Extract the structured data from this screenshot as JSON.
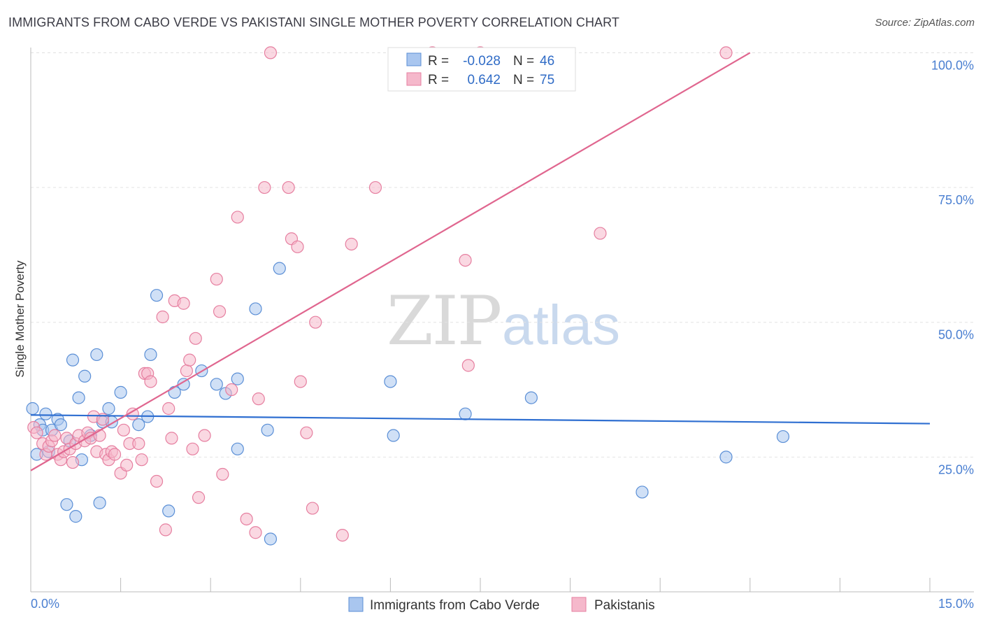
{
  "header": {
    "title": "IMMIGRANTS FROM CABO VERDE VS PAKISTANI SINGLE MOTHER POVERTY CORRELATION CHART",
    "source": "Source: ZipAtlas.com"
  },
  "watermark": {
    "zip": "ZIP",
    "atlas": "atlas"
  },
  "colors": {
    "blue_fill": "#a9c6ef",
    "blue_stroke": "#5b8fd6",
    "blue_line": "#2f6fd1",
    "pink_fill": "#f5b8cb",
    "pink_stroke": "#e67fa0",
    "pink_line": "#e0668f",
    "axis_label": "#4a7fd1"
  },
  "legend": {
    "rows": [
      {
        "r_label": "R =",
        "r_value": "-0.028",
        "n_label": "N =",
        "n_value": "46",
        "color": "#a9c6ef"
      },
      {
        "r_label": "R =",
        "r_value": "0.642",
        "n_label": "N =",
        "n_value": "75",
        "color": "#f5b8cb"
      }
    ]
  },
  "bottom_legend": {
    "items": [
      {
        "label": "Immigrants from Cabo Verde",
        "color": "#a9c6ef"
      },
      {
        "label": "Pakistanis",
        "color": "#f5b8cb"
      }
    ]
  },
  "chart_data": {
    "type": "scatter",
    "title": "IMMIGRANTS FROM CABO VERDE VS PAKISTANI SINGLE MOTHER POVERTY CORRELATION CHART",
    "xlabel": "",
    "ylabel": "Single Mother Poverty",
    "xlim": [
      0,
      15
    ],
    "ylim": [
      0,
      102
    ],
    "x_tick_labels": [
      "0.0%",
      "15.0%"
    ],
    "y_ticks": [
      25,
      50,
      75,
      100
    ],
    "y_tick_labels": [
      "25.0%",
      "50.0%",
      "75.0%",
      "100.0%"
    ],
    "grid": true,
    "series": [
      {
        "name": "Immigrants from Cabo Verde",
        "r": -0.028,
        "n": 46,
        "trend": {
          "x": [
            0,
            15
          ],
          "y": [
            32.8,
            31.2
          ]
        },
        "points": [
          [
            0.03,
            34.0
          ],
          [
            0.1,
            25.5
          ],
          [
            0.15,
            31.0
          ],
          [
            0.2,
            30.0
          ],
          [
            0.25,
            33.0
          ],
          [
            0.3,
            26.0
          ],
          [
            0.35,
            30.0
          ],
          [
            0.45,
            32.0
          ],
          [
            0.5,
            31.0
          ],
          [
            0.6,
            16.2
          ],
          [
            0.65,
            28.0
          ],
          [
            0.7,
            43.0
          ],
          [
            0.75,
            14.0
          ],
          [
            0.8,
            36.0
          ],
          [
            0.85,
            24.5
          ],
          [
            0.9,
            40.0
          ],
          [
            1.0,
            29.0
          ],
          [
            1.1,
            44.0
          ],
          [
            1.15,
            16.5
          ],
          [
            1.2,
            31.5
          ],
          [
            1.3,
            34.0
          ],
          [
            1.35,
            31.5
          ],
          [
            1.5,
            37.0
          ],
          [
            1.8,
            31.0
          ],
          [
            1.95,
            32.5
          ],
          [
            2.0,
            44.0
          ],
          [
            2.1,
            55.0
          ],
          [
            2.3,
            15.0
          ],
          [
            2.4,
            37.0
          ],
          [
            2.55,
            38.5
          ],
          [
            2.85,
            41.0
          ],
          [
            3.1,
            38.5
          ],
          [
            3.25,
            36.8
          ],
          [
            3.45,
            39.5
          ],
          [
            3.45,
            26.5
          ],
          [
            3.75,
            52.5
          ],
          [
            3.95,
            30.0
          ],
          [
            4.0,
            9.8
          ],
          [
            4.15,
            60.0
          ],
          [
            6.0,
            39.0
          ],
          [
            6.05,
            29.0
          ],
          [
            7.25,
            33.0
          ],
          [
            8.35,
            36.0
          ],
          [
            10.2,
            18.5
          ],
          [
            11.6,
            25.0
          ],
          [
            12.55,
            28.8
          ]
        ]
      },
      {
        "name": "Pakistanis",
        "r": 0.642,
        "n": 75,
        "trend": {
          "x": [
            0,
            12.0
          ],
          "y": [
            22.5,
            100.0
          ]
        },
        "points": [
          [
            0.05,
            30.5
          ],
          [
            0.1,
            29.5
          ],
          [
            0.2,
            27.5
          ],
          [
            0.25,
            25.5
          ],
          [
            0.3,
            27.0
          ],
          [
            0.35,
            28.0
          ],
          [
            0.4,
            29.0
          ],
          [
            0.45,
            25.5
          ],
          [
            0.5,
            24.5
          ],
          [
            0.55,
            26.0
          ],
          [
            0.6,
            28.5
          ],
          [
            0.65,
            26.5
          ],
          [
            0.7,
            24.0
          ],
          [
            0.75,
            27.5
          ],
          [
            0.8,
            29.0
          ],
          [
            0.9,
            28.0
          ],
          [
            0.95,
            29.5
          ],
          [
            1.0,
            28.5
          ],
          [
            1.05,
            32.5
          ],
          [
            1.1,
            26.0
          ],
          [
            1.15,
            29.0
          ],
          [
            1.2,
            32.0
          ],
          [
            1.25,
            25.5
          ],
          [
            1.3,
            24.5
          ],
          [
            1.35,
            26.0
          ],
          [
            1.4,
            25.5
          ],
          [
            1.5,
            22.0
          ],
          [
            1.55,
            30.0
          ],
          [
            1.6,
            23.5
          ],
          [
            1.65,
            27.5
          ],
          [
            1.7,
            33.0
          ],
          [
            1.8,
            27.5
          ],
          [
            1.85,
            24.5
          ],
          [
            1.9,
            40.5
          ],
          [
            1.95,
            40.5
          ],
          [
            2.0,
            39.0
          ],
          [
            2.1,
            20.5
          ],
          [
            2.2,
            51.0
          ],
          [
            2.25,
            11.5
          ],
          [
            2.3,
            34.0
          ],
          [
            2.35,
            28.5
          ],
          [
            2.4,
            54.0
          ],
          [
            2.55,
            53.5
          ],
          [
            2.6,
            41.0
          ],
          [
            2.65,
            43.0
          ],
          [
            2.7,
            26.5
          ],
          [
            2.75,
            47.0
          ],
          [
            2.8,
            17.5
          ],
          [
            2.9,
            29.0
          ],
          [
            3.1,
            58.0
          ],
          [
            3.15,
            52.0
          ],
          [
            3.2,
            21.8
          ],
          [
            3.35,
            37.5
          ],
          [
            3.45,
            69.5
          ],
          [
            3.6,
            13.5
          ],
          [
            3.75,
            11.0
          ],
          [
            3.8,
            35.8
          ],
          [
            3.9,
            75.0
          ],
          [
            4.0,
            100.0
          ],
          [
            4.3,
            75.0
          ],
          [
            4.35,
            65.5
          ],
          [
            4.45,
            64.0
          ],
          [
            4.5,
            39.0
          ],
          [
            4.6,
            29.5
          ],
          [
            4.7,
            15.5
          ],
          [
            4.75,
            50.0
          ],
          [
            5.2,
            10.5
          ],
          [
            5.35,
            64.5
          ],
          [
            5.75,
            75.0
          ],
          [
            6.7,
            100.0
          ],
          [
            7.25,
            61.5
          ],
          [
            7.3,
            42.0
          ],
          [
            7.5,
            100.0
          ],
          [
            9.5,
            66.5
          ],
          [
            11.6,
            100.0
          ]
        ]
      }
    ]
  }
}
